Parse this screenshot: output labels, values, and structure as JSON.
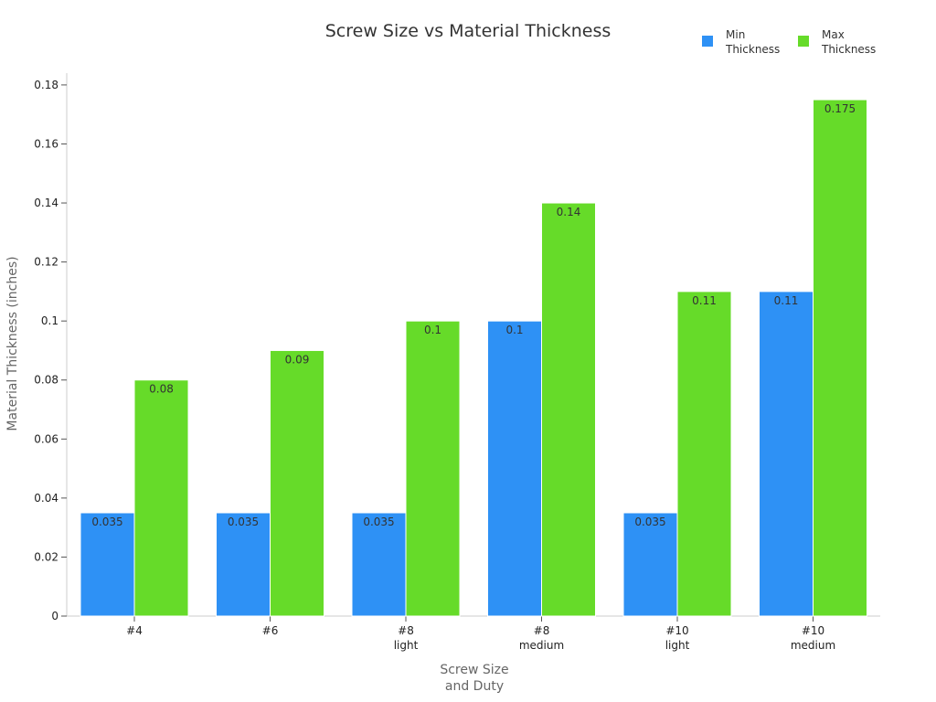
{
  "chart_data": {
    "type": "bar",
    "title": "Screw Size vs Material Thickness",
    "xlabel": [
      "Screw Size",
      "and Duty"
    ],
    "ylabel": "Material Thickness (inches)",
    "categories": [
      [
        "#4"
      ],
      [
        "#6"
      ],
      [
        "#8",
        "light"
      ],
      [
        "#8",
        "medium"
      ],
      [
        "#10",
        "light"
      ],
      [
        "#10",
        "medium"
      ]
    ],
    "series": [
      {
        "name": [
          "Min",
          "Thickness"
        ],
        "color": "#2e91f5",
        "values": [
          0.035,
          0.035,
          0.035,
          0.1,
          0.035,
          0.11
        ]
      },
      {
        "name": [
          "Max",
          "Thickness"
        ],
        "color": "#66db29",
        "values": [
          0.08,
          0.09,
          0.1,
          0.14,
          0.11,
          0.175
        ]
      }
    ],
    "ylim": [
      0,
      0.184
    ],
    "yticks": [
      0,
      0.02,
      0.04,
      0.06,
      0.08,
      0.1,
      0.12,
      0.14,
      0.16,
      0.18
    ],
    "ytick_labels": [
      "0",
      "0.02",
      "0.04",
      "0.06",
      "0.08",
      "0.1",
      "0.12",
      "0.14",
      "0.16",
      "0.18"
    ],
    "data_labels": [
      [
        "0.035",
        "0.035",
        "0.035",
        "0.1",
        "0.035",
        "0.11"
      ],
      [
        "0.08",
        "0.09",
        "0.1",
        "0.14",
        "0.11",
        "0.175"
      ]
    ],
    "legend_position": "top-right",
    "grid": false
  }
}
